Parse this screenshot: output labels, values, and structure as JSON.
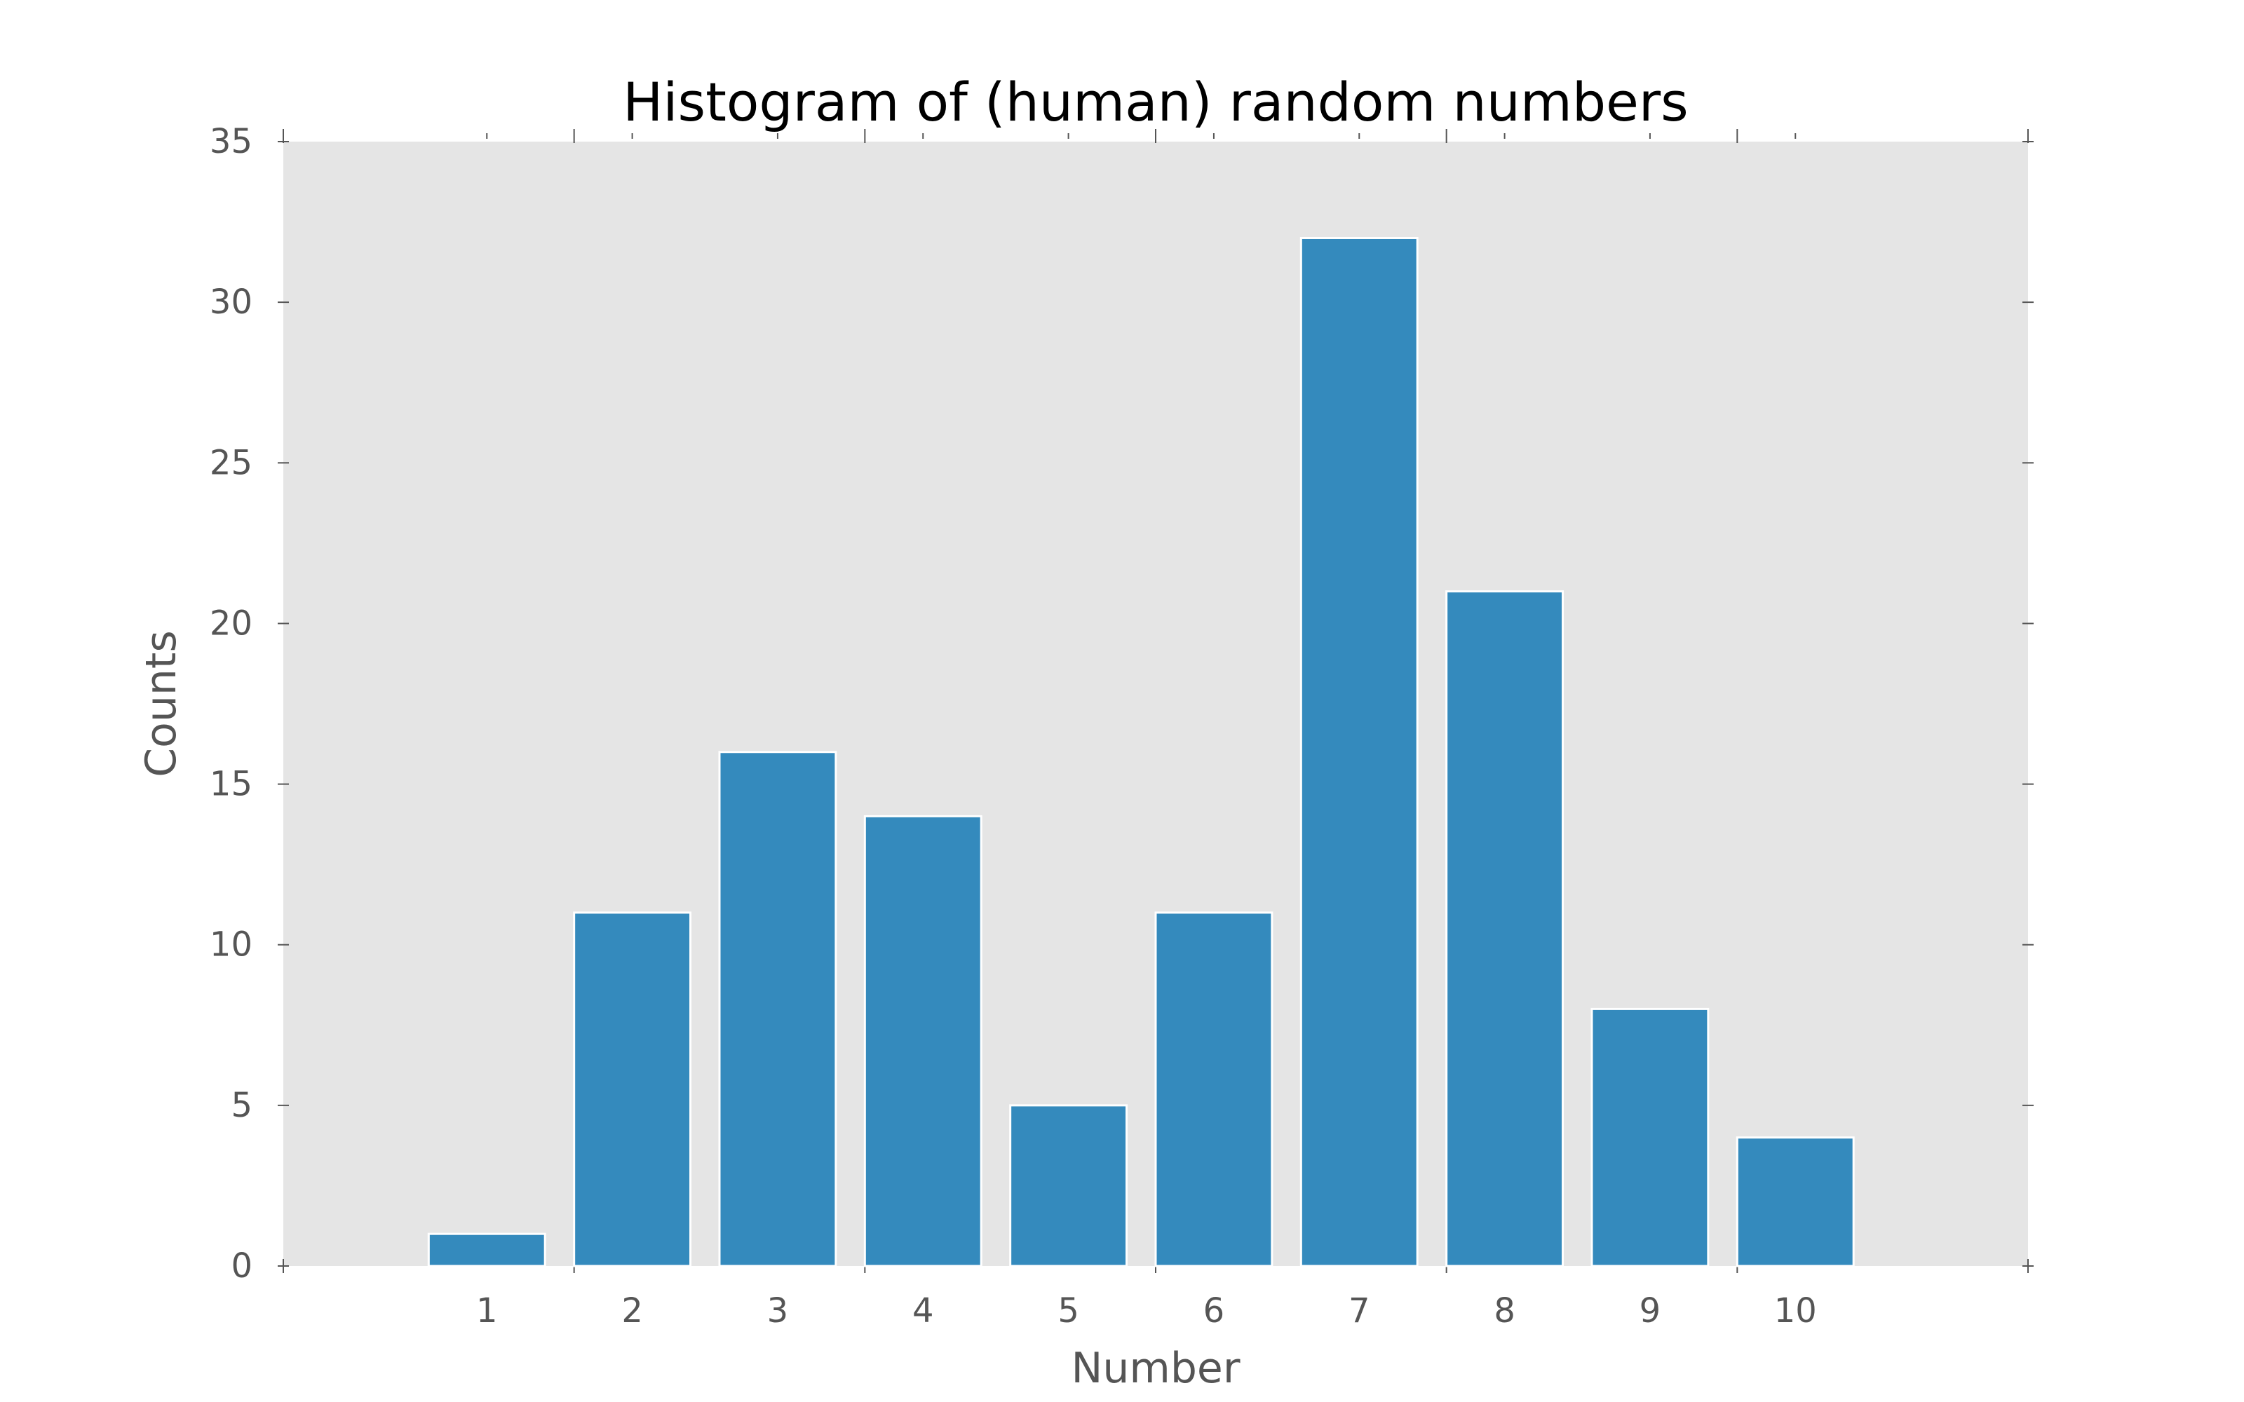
{
  "chart_data": {
    "type": "bar",
    "title": "Histogram of (human) random numbers",
    "xlabel": "Number",
    "ylabel": "Counts",
    "categories": [
      "1",
      "2",
      "3",
      "4",
      "5",
      "6",
      "7",
      "8",
      "9",
      "10"
    ],
    "x": [
      1,
      2,
      3,
      4,
      5,
      6,
      7,
      8,
      9,
      10
    ],
    "values": [
      1,
      11,
      16,
      14,
      5,
      11,
      32,
      21,
      8,
      4
    ],
    "xlim": [
      -0.4,
      11.6
    ],
    "ylim": [
      0,
      35
    ],
    "yticks": [
      0,
      5,
      10,
      15,
      20,
      25,
      30,
      35
    ],
    "grid": false,
    "legend": "none",
    "colors": {
      "bar": "#348abd",
      "bar_edge": "#ffffff",
      "plot_background": "#e5e5e5",
      "text": "#555555",
      "title": "#000000"
    }
  }
}
